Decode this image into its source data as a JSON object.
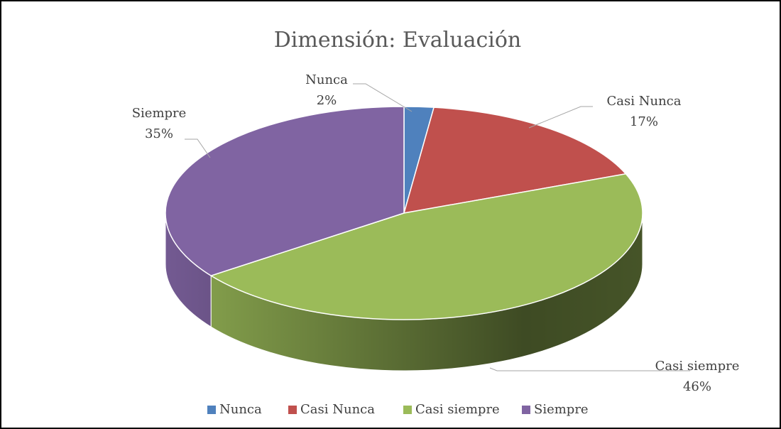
{
  "chart_data": {
    "type": "pie",
    "title": "Dimensión: Evaluación",
    "categories": [
      "Nunca",
      "Casi Nunca",
      "Casi siempre",
      "Siempre"
    ],
    "values": [
      2,
      17,
      46,
      35
    ],
    "value_labels": [
      "2%",
      "17%",
      "46%",
      "35%"
    ],
    "colors": [
      "#4f81bd",
      "#c0504d",
      "#9bbb59",
      "#8064a2"
    ],
    "legend": "bottom"
  }
}
